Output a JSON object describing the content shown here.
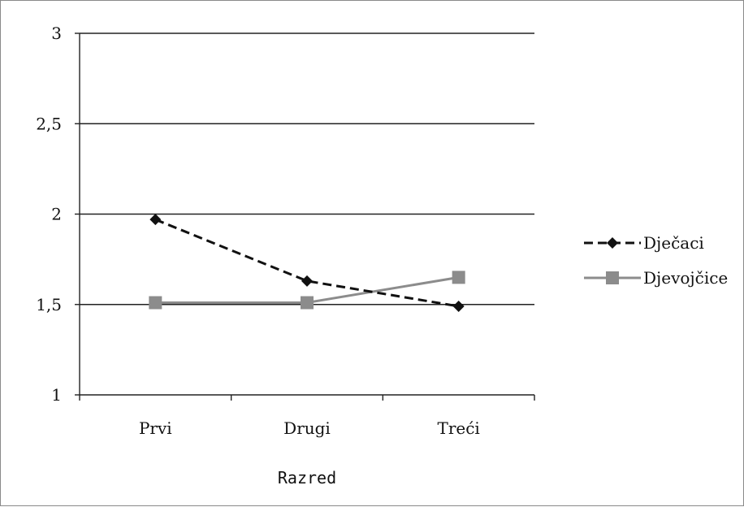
{
  "chart_data": {
    "type": "line",
    "categories": [
      "Prvi",
      "Drugi",
      "Treći"
    ],
    "series": [
      {
        "name": "Dječaci",
        "values": [
          1.97,
          1.63,
          1.49
        ],
        "color": "#111111",
        "dash": "dashed",
        "marker": "diamond"
      },
      {
        "name": "Djevojčice",
        "values": [
          1.51,
          1.51,
          1.65
        ],
        "color": "#8c8c8c",
        "dash": "solid",
        "marker": "square"
      }
    ],
    "yticks": [
      "1",
      "1,5",
      "2",
      "2,5",
      "3"
    ],
    "ylim": [
      1,
      3
    ],
    "xlabel": "Razred",
    "ylabel": "",
    "title": "",
    "grid": true,
    "legend": "right"
  }
}
